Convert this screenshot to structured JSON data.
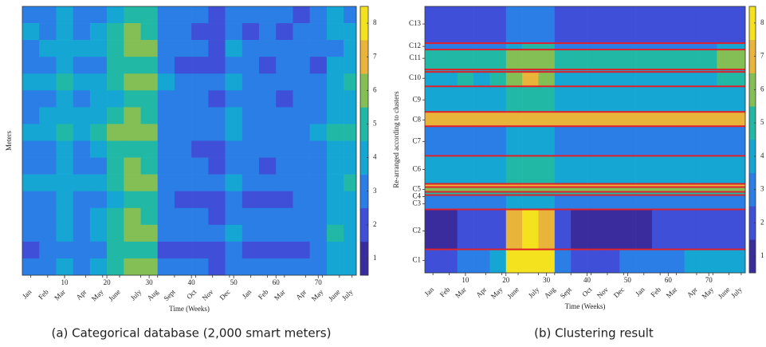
{
  "chart_data": [
    {
      "type": "heatmap",
      "ylabel": "Meters",
      "xlabel": "Time (Weeks)",
      "caption": "(a) Categorical database (2,000 smart meters)",
      "xlim": [
        0,
        79
      ],
      "ylim": [
        0,
        2000
      ],
      "xticks": [
        10,
        20,
        30,
        40,
        50,
        60,
        70
      ],
      "month_ticks": [
        {
          "value": 2,
          "label": "Jan"
        },
        {
          "value": 6,
          "label": "Feb"
        },
        {
          "value": 10,
          "label": "Mar"
        },
        {
          "value": 15,
          "label": "Apr"
        },
        {
          "value": 19,
          "label": "May"
        },
        {
          "value": 23,
          "label": "June"
        },
        {
          "value": 28,
          "label": "July"
        },
        {
          "value": 32,
          "label": "Aug"
        },
        {
          "value": 36,
          "label": "Sept"
        },
        {
          "value": 41,
          "label": "Oct"
        },
        {
          "value": 45,
          "label": "Nov"
        },
        {
          "value": 49,
          "label": "Dec"
        },
        {
          "value": 54,
          "label": "Jan"
        },
        {
          "value": 58,
          "label": "Feb"
        },
        {
          "value": 62,
          "label": "Mar"
        },
        {
          "value": 67,
          "label": "Apr"
        },
        {
          "value": 71,
          "label": "May"
        },
        {
          "value": 75,
          "label": "June"
        },
        {
          "value": 78,
          "label": "July"
        }
      ],
      "clim": [
        0.5,
        8.5
      ],
      "cticks": [
        1,
        2,
        3,
        4,
        5,
        6,
        7,
        8
      ],
      "colors": [
        "#3b2c9e",
        "#3f4fd8",
        "#2a7ee6",
        "#16a6d4",
        "#22b8a6",
        "#84bf56",
        "#e8b43a",
        "#f4e21e"
      ],
      "col_edges": [
        0,
        4,
        8,
        12,
        16,
        20,
        24,
        28,
        32,
        36,
        40,
        44,
        48,
        52,
        56,
        60,
        64,
        68,
        72,
        76,
        79
      ],
      "row_edges": [
        0,
        125,
        250,
        375,
        500,
        625,
        750,
        875,
        1000,
        1125,
        1250,
        1375,
        1500,
        1625,
        1750,
        1875,
        2000
      ],
      "values": [
        [
          3,
          3,
          4,
          3,
          3,
          4,
          5,
          5,
          3,
          3,
          3,
          2,
          3,
          3,
          3,
          3,
          2,
          3,
          4,
          3
        ],
        [
          4,
          3,
          4,
          3,
          4,
          5,
          6,
          5,
          3,
          3,
          2,
          2,
          3,
          2,
          3,
          2,
          3,
          3,
          4,
          4
        ],
        [
          3,
          4,
          4,
          4,
          4,
          5,
          6,
          6,
          3,
          3,
          3,
          2,
          4,
          3,
          3,
          3,
          3,
          3,
          3,
          4
        ],
        [
          3,
          3,
          4,
          3,
          3,
          5,
          5,
          5,
          3,
          2,
          2,
          2,
          3,
          3,
          2,
          3,
          3,
          2,
          4,
          4
        ],
        [
          4,
          4,
          5,
          4,
          4,
          5,
          6,
          6,
          4,
          3,
          3,
          3,
          4,
          3,
          3,
          3,
          3,
          3,
          4,
          5
        ],
        [
          3,
          3,
          4,
          3,
          4,
          4,
          5,
          5,
          3,
          3,
          3,
          2,
          3,
          3,
          3,
          2,
          3,
          3,
          4,
          4
        ],
        [
          3,
          4,
          4,
          4,
          4,
          5,
          6,
          5,
          3,
          3,
          3,
          3,
          4,
          3,
          3,
          3,
          3,
          3,
          4,
          4
        ],
        [
          4,
          4,
          5,
          4,
          5,
          6,
          6,
          6,
          3,
          3,
          3,
          3,
          4,
          3,
          3,
          3,
          3,
          4,
          5,
          5
        ],
        [
          3,
          3,
          4,
          3,
          4,
          5,
          5,
          5,
          3,
          3,
          2,
          2,
          3,
          3,
          3,
          3,
          3,
          3,
          4,
          4
        ],
        [
          3,
          3,
          4,
          3,
          3,
          5,
          6,
          5,
          3,
          3,
          3,
          2,
          3,
          3,
          2,
          3,
          3,
          3,
          4,
          4
        ],
        [
          4,
          4,
          4,
          4,
          4,
          5,
          6,
          6,
          3,
          3,
          3,
          3,
          4,
          3,
          3,
          3,
          3,
          3,
          4,
          5
        ],
        [
          3,
          3,
          4,
          3,
          3,
          4,
          5,
          5,
          3,
          2,
          2,
          2,
          3,
          2,
          2,
          2,
          3,
          3,
          4,
          4
        ],
        [
          3,
          3,
          4,
          3,
          4,
          5,
          6,
          5,
          3,
          3,
          3,
          2,
          3,
          3,
          3,
          3,
          3,
          3,
          4,
          4
        ],
        [
          3,
          3,
          4,
          3,
          4,
          5,
          6,
          6,
          3,
          3,
          3,
          3,
          4,
          3,
          3,
          3,
          3,
          3,
          5,
          4
        ],
        [
          2,
          3,
          3,
          3,
          3,
          5,
          5,
          5,
          2,
          2,
          2,
          2,
          3,
          2,
          2,
          2,
          2,
          3,
          4,
          4
        ],
        [
          3,
          3,
          4,
          3,
          4,
          5,
          6,
          6,
          3,
          3,
          3,
          2,
          3,
          3,
          3,
          3,
          3,
          3,
          4,
          4
        ]
      ]
    },
    {
      "type": "heatmap",
      "ylabel": "Re-arranged according to clusters",
      "xlabel": "Time (Weeks)",
      "caption": "(b) Clustering result",
      "xlim": [
        0,
        79
      ],
      "ylim": [
        0,
        2000
      ],
      "xticks": [
        10,
        20,
        30,
        40,
        50,
        60,
        70
      ],
      "month_ticks": [
        {
          "value": 2,
          "label": "Jan"
        },
        {
          "value": 6,
          "label": "Feb"
        },
        {
          "value": 10,
          "label": "Mar"
        },
        {
          "value": 15,
          "label": "Apr"
        },
        {
          "value": 19,
          "label": "May"
        },
        {
          "value": 23,
          "label": "June"
        },
        {
          "value": 28,
          "label": "July"
        },
        {
          "value": 32,
          "label": "Aug"
        },
        {
          "value": 36,
          "label": "Sept"
        },
        {
          "value": 41,
          "label": "Oct"
        },
        {
          "value": 45,
          "label": "Nov"
        },
        {
          "value": 49,
          "label": "Dec"
        },
        {
          "value": 54,
          "label": "Jan"
        },
        {
          "value": 58,
          "label": "Feb"
        },
        {
          "value": 62,
          "label": "Mar"
        },
        {
          "value": 67,
          "label": "Apr"
        },
        {
          "value": 71,
          "label": "May"
        },
        {
          "value": 75,
          "label": "June"
        },
        {
          "value": 78,
          "label": "July"
        }
      ],
      "yticks": [
        {
          "value": 132,
          "label": "C13"
        },
        {
          "value": 300,
          "label": "C12"
        },
        {
          "value": 390,
          "label": "C11"
        },
        {
          "value": 540,
          "label": "C10"
        },
        {
          "value": 702,
          "label": "C9"
        },
        {
          "value": 852,
          "label": "C8"
        },
        {
          "value": 1014,
          "label": "C7"
        },
        {
          "value": 1224,
          "label": "C6"
        },
        {
          "value": 1374,
          "label": "C5"
        },
        {
          "value": 1428,
          "label": "C4"
        },
        {
          "value": 1482,
          "label": "C3"
        },
        {
          "value": 1686,
          "label": "C2"
        },
        {
          "value": 1908,
          "label": "C1"
        }
      ],
      "clim": [
        0.5,
        8.5
      ],
      "cticks": [
        1,
        2,
        3,
        4,
        5,
        6,
        7,
        8
      ],
      "colors": [
        "#3b2c9e",
        "#3f4fd8",
        "#2a7ee6",
        "#16a6d4",
        "#22b8a6",
        "#84bf56",
        "#e8b43a",
        "#f4e21e"
      ],
      "boundary_color": "#e0202a",
      "col_edges": [
        0,
        4,
        8,
        12,
        16,
        20,
        24,
        28,
        32,
        36,
        40,
        44,
        48,
        52,
        56,
        60,
        64,
        68,
        72,
        76,
        79
      ],
      "row_edges": [
        0,
        276,
        324,
        474,
        492,
        600,
        792,
        900,
        1122,
        1332,
        1356,
        1392,
        1416,
        1524,
        1824,
        2000
      ],
      "values": [
        [
          2,
          2,
          2,
          2,
          2,
          3,
          3,
          3,
          2,
          2,
          2,
          2,
          2,
          2,
          2,
          2,
          2,
          2,
          2,
          2
        ],
        [
          3,
          3,
          3,
          3,
          3,
          4,
          5,
          5,
          3,
          3,
          3,
          3,
          3,
          3,
          3,
          3,
          3,
          3,
          4,
          4
        ],
        [
          5,
          5,
          5,
          5,
          5,
          6,
          6,
          6,
          5,
          5,
          5,
          5,
          5,
          5,
          5,
          5,
          5,
          5,
          6,
          6
        ],
        [
          4,
          4,
          4,
          4,
          4,
          5,
          5,
          5,
          4,
          4,
          4,
          4,
          4,
          4,
          4,
          4,
          4,
          4,
          4,
          4
        ],
        [
          4,
          4,
          5,
          4,
          5,
          6,
          7,
          6,
          4,
          4,
          4,
          4,
          4,
          4,
          4,
          4,
          4,
          4,
          5,
          5
        ],
        [
          4,
          4,
          4,
          4,
          4,
          5,
          5,
          5,
          4,
          4,
          4,
          4,
          4,
          4,
          4,
          4,
          4,
          4,
          4,
          4
        ],
        [
          7,
          7,
          7,
          7,
          7,
          7,
          7,
          7,
          7,
          7,
          7,
          7,
          7,
          7,
          7,
          7,
          7,
          7,
          7,
          7
        ],
        [
          3,
          3,
          3,
          3,
          3,
          4,
          4,
          4,
          3,
          3,
          3,
          3,
          3,
          3,
          3,
          3,
          3,
          3,
          3,
          3
        ],
        [
          4,
          4,
          4,
          4,
          4,
          5,
          5,
          5,
          4,
          4,
          4,
          4,
          4,
          4,
          4,
          4,
          4,
          4,
          4,
          4
        ],
        [
          7,
          7,
          7,
          7,
          7,
          7,
          7,
          7,
          7,
          7,
          7,
          7,
          7,
          7,
          7,
          7,
          7,
          7,
          7,
          7
        ],
        [
          6,
          6,
          6,
          6,
          6,
          6,
          6,
          6,
          6,
          6,
          6,
          6,
          6,
          6,
          6,
          6,
          6,
          6,
          6,
          6
        ],
        [
          5,
          5,
          5,
          5,
          5,
          5,
          5,
          5,
          5,
          5,
          5,
          5,
          5,
          5,
          5,
          5,
          5,
          5,
          5,
          5
        ],
        [
          3,
          3,
          3,
          3,
          3,
          4,
          4,
          4,
          3,
          3,
          3,
          3,
          3,
          3,
          3,
          3,
          3,
          3,
          3,
          3
        ],
        [
          1,
          1,
          2,
          2,
          2,
          7,
          8,
          7,
          2,
          1,
          1,
          1,
          1,
          1,
          2,
          2,
          2,
          2,
          2,
          2
        ],
        [
          2,
          2,
          3,
          3,
          4,
          8,
          8,
          8,
          3,
          2,
          2,
          2,
          3,
          3,
          3,
          3,
          4,
          4,
          4,
          4
        ]
      ]
    }
  ]
}
